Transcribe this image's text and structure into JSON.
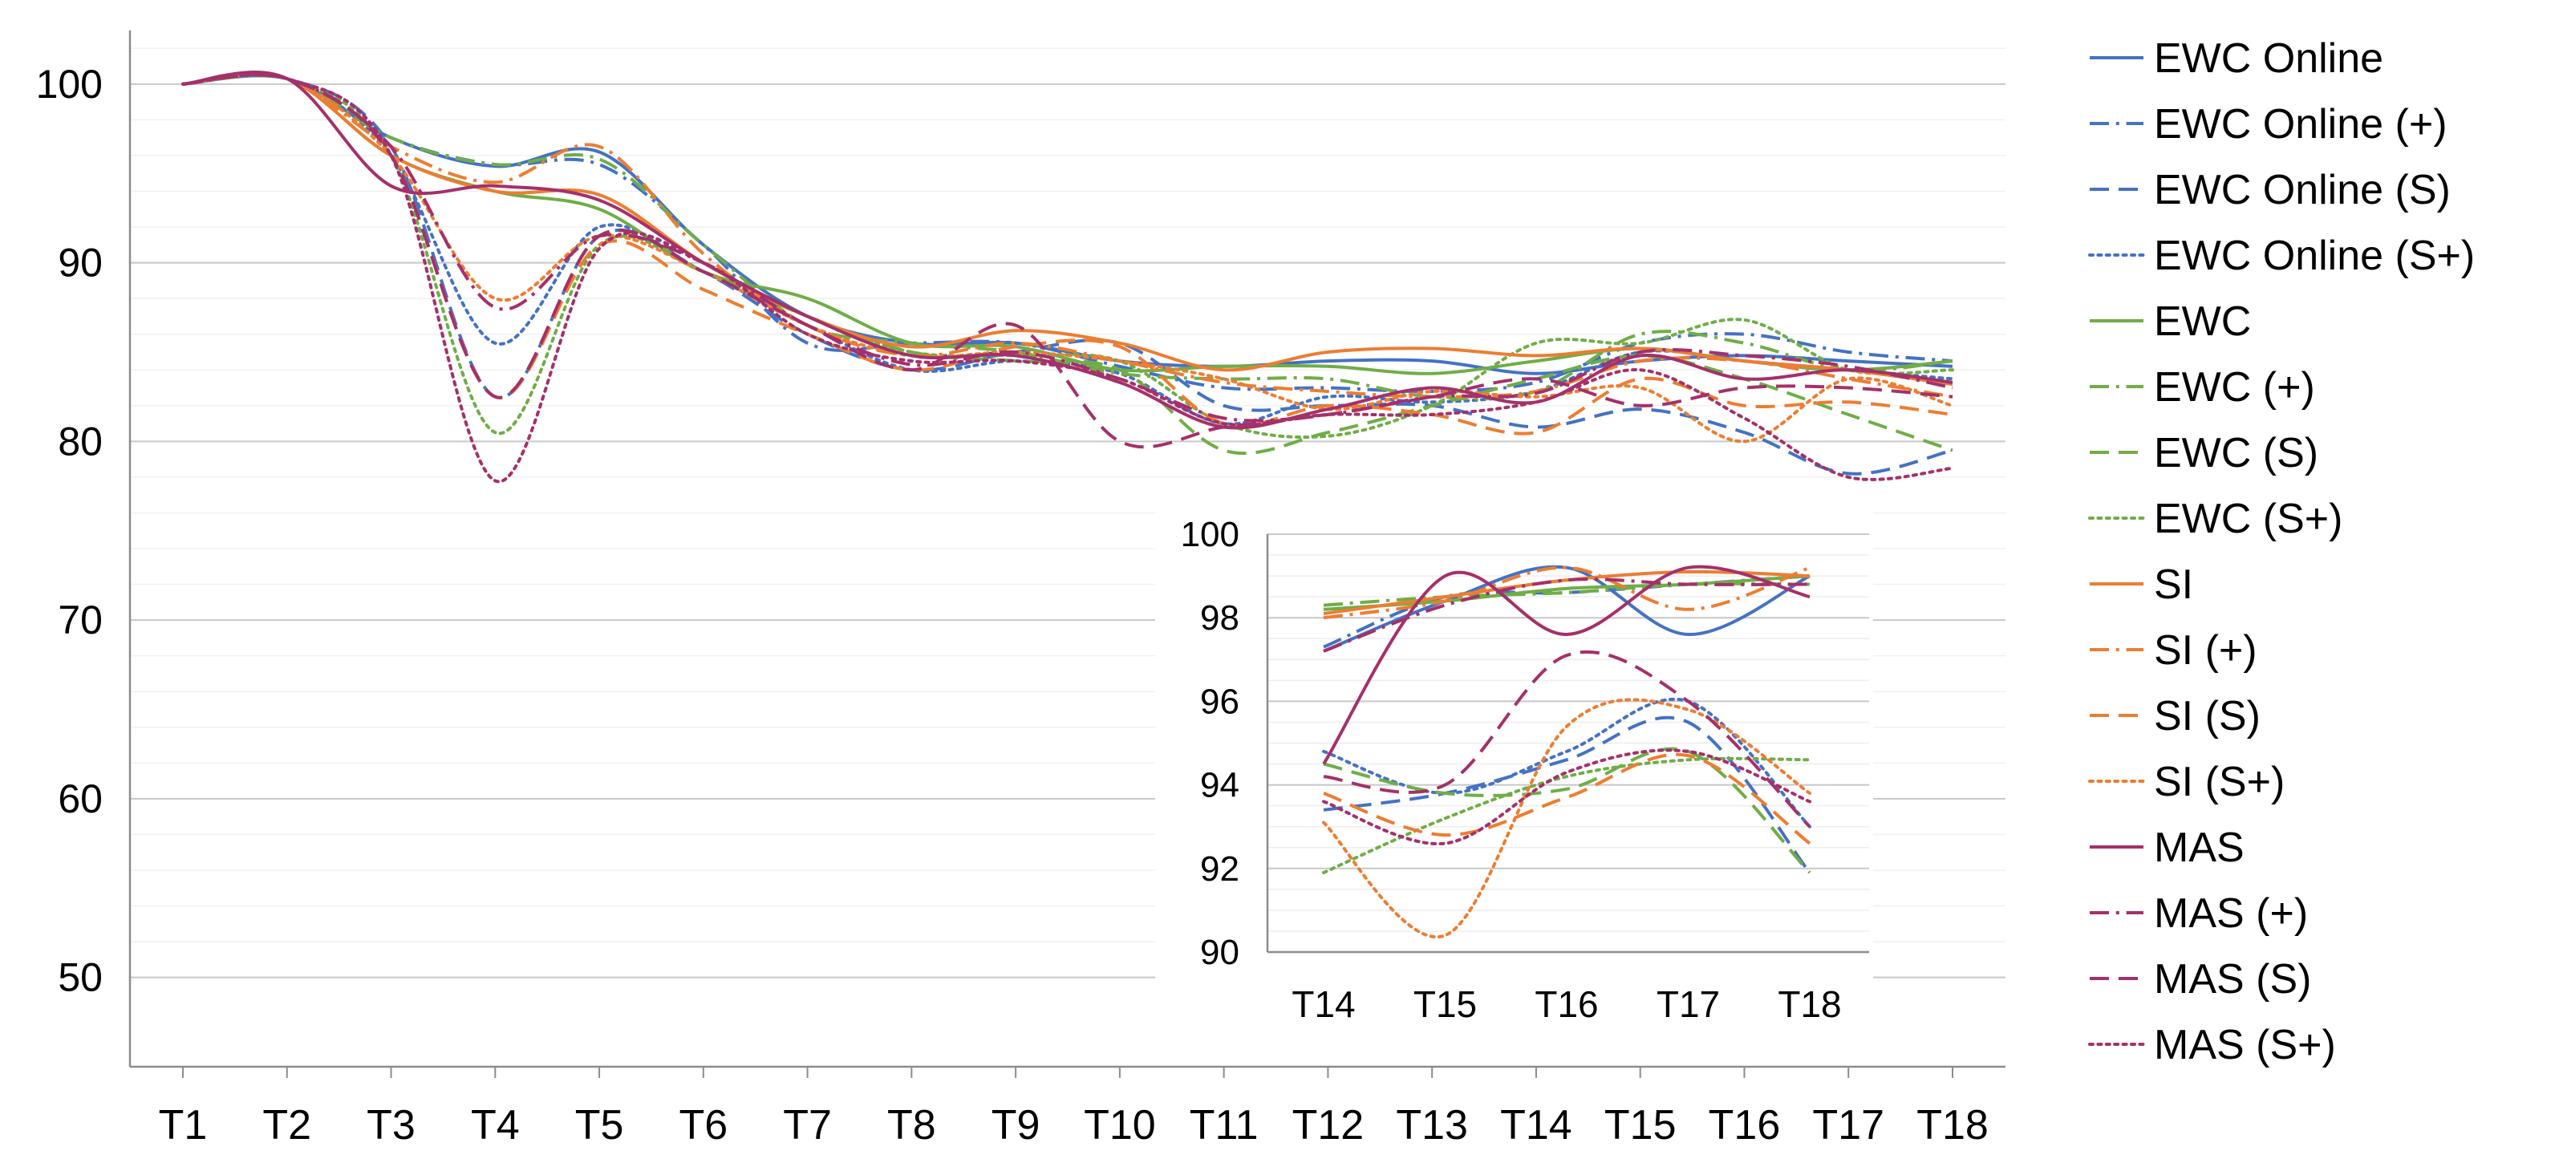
{
  "chart_data": [
    {
      "type": "line",
      "title": "",
      "xlabel": "",
      "ylabel": "",
      "categories": [
        "T1",
        "T2",
        "T3",
        "T4",
        "T5",
        "T6",
        "T7",
        "T8",
        "T9",
        "T10",
        "T11",
        "T12",
        "T13",
        "T14",
        "T15",
        "T16",
        "T17",
        "T18"
      ],
      "yticks": [
        "100",
        "90",
        "80",
        "70",
        "60",
        "50"
      ],
      "ylim": [
        45,
        103
      ],
      "grid": true,
      "legend_position": "right",
      "series": [
        {
          "name": "EWC Online",
          "color": "#4472C4",
          "dash": "solid",
          "values": [
            100,
            100.3,
            97,
            95.4,
            96.2,
            91,
            87,
            85.5,
            85.5,
            84.5,
            84.2,
            84.5,
            84.5,
            83.8,
            84.5,
            84.8,
            84.5,
            84.2
          ]
        },
        {
          "name": "EWC Online (+)",
          "color": "#4472C4",
          "dash": "dashdot",
          "values": [
            100,
            100.3,
            97,
            95.5,
            95.5,
            91,
            85.5,
            85.5,
            85.5,
            84.2,
            83,
            83,
            82.8,
            83.3,
            85.5,
            86,
            85,
            84.5
          ]
        },
        {
          "name": "EWC Online (S)",
          "color": "#4472C4",
          "dash": "dash",
          "values": [
            100,
            100.3,
            96.5,
            82.5,
            91.5,
            89.5,
            86,
            84,
            85,
            85.5,
            82,
            82,
            82,
            80.8,
            81.8,
            80.5,
            78.2,
            79.5
          ]
        },
        {
          "name": "EWC Online (S+)",
          "color": "#4472C4",
          "dash": "dot",
          "values": [
            100,
            100.3,
            96,
            85.5,
            92,
            89.5,
            86.5,
            84,
            84.5,
            83.8,
            81,
            82.5,
            82.2,
            82.8,
            85,
            84.5,
            84,
            83.5
          ]
        },
        {
          "name": "EWC",
          "color": "#70AD47",
          "dash": "solid",
          "values": [
            100,
            100.3,
            96,
            94,
            93,
            89.5,
            88,
            85.5,
            85.3,
            84,
            84.2,
            84.2,
            83.8,
            84.5,
            85.2,
            84.5,
            84,
            84.5
          ]
        },
        {
          "name": "EWC (+)",
          "color": "#70AD47",
          "dash": "dashdot",
          "values": [
            100,
            100.3,
            97,
            95.5,
            95.8,
            91,
            86.5,
            85.5,
            85,
            83.8,
            83.5,
            83.5,
            82.5,
            82.8,
            86,
            85.5,
            84,
            84.5
          ]
        },
        {
          "name": "EWC (S)",
          "color": "#70AD47",
          "dash": "dash",
          "values": [
            100,
            100.3,
            96,
            82.5,
            91.5,
            89.5,
            87,
            85,
            84.5,
            84,
            79.5,
            80.5,
            82,
            83.5,
            84.8,
            83.5,
            81.5,
            79.5
          ]
        },
        {
          "name": "EWC (S+)",
          "color": "#70AD47",
          "dash": "dot",
          "values": [
            100,
            100.3,
            96,
            80.5,
            91,
            89.5,
            87,
            85,
            84.8,
            84.5,
            81,
            80.3,
            82,
            85.5,
            85.5,
            86.8,
            84,
            84
          ]
        },
        {
          "name": "SI",
          "color": "#ED7D31",
          "dash": "solid",
          "values": [
            100,
            100.3,
            96,
            94,
            93.8,
            90,
            87,
            85.3,
            86.2,
            85.5,
            84,
            85,
            85.2,
            84.8,
            85.2,
            84.5,
            84,
            83.2
          ]
        },
        {
          "name": "SI (+)",
          "color": "#ED7D31",
          "dash": "dashdot",
          "values": [
            100,
            100.3,
            96.5,
            94.5,
            96.5,
            90.5,
            86.5,
            84.8,
            85.5,
            84.5,
            83.3,
            82.8,
            82.5,
            82.8,
            84.5,
            84.5,
            83.5,
            82.5
          ]
        },
        {
          "name": "SI (S)",
          "color": "#ED7D31",
          "dash": "dash",
          "values": [
            100,
            100.3,
            96,
            82.5,
            91,
            88.5,
            86,
            84,
            85.3,
            85.3,
            81,
            82,
            81.5,
            80.5,
            83.5,
            82,
            82.2,
            81.5
          ]
        },
        {
          "name": "SI (S+)",
          "color": "#ED7D31",
          "dash": "dot",
          "values": [
            100,
            100.3,
            96,
            88,
            91.5,
            89.5,
            86.5,
            84.8,
            85,
            84.5,
            83.5,
            81.8,
            82.8,
            82.5,
            83,
            80,
            83.5,
            82
          ]
        },
        {
          "name": "MAS",
          "color": "#A5306A",
          "dash": "solid",
          "values": [
            100,
            100.3,
            94.3,
            94.3,
            93.5,
            90,
            87,
            84.8,
            84.8,
            83.3,
            80.8,
            81.8,
            83,
            82.2,
            84.8,
            83.5,
            84,
            83.3
          ]
        },
        {
          "name": "MAS (+)",
          "color": "#A5306A",
          "dash": "dashdot",
          "values": [
            100,
            100.3,
            96.5,
            87.5,
            91.5,
            90,
            86.5,
            84.3,
            85,
            83.5,
            81.3,
            81.5,
            82.5,
            82.7,
            85,
            84.8,
            84.2,
            83
          ]
        },
        {
          "name": "MAS (S)",
          "color": "#A5306A",
          "dash": "dash",
          "values": [
            100,
            100.3,
            96,
            82.5,
            91.5,
            89.5,
            86.5,
            84,
            86.5,
            80,
            80.8,
            81.5,
            82.5,
            83.5,
            82,
            83,
            83,
            82.5
          ]
        },
        {
          "name": "MAS (S+)",
          "color": "#A5306A",
          "dash": "dot",
          "values": [
            100,
            100.3,
            96,
            77.8,
            90.8,
            90,
            86,
            84.5,
            84.5,
            83.5,
            81,
            81.5,
            81.5,
            82.2,
            84,
            81.3,
            78,
            78.5
          ]
        }
      ]
    },
    {
      "type": "line",
      "title": "",
      "xlabel": "",
      "ylabel": "",
      "categories": [
        "T14",
        "T15",
        "T16",
        "T17",
        "T18"
      ],
      "yticks": [
        "100",
        "98",
        "96",
        "94",
        "92",
        "90"
      ],
      "ylim": [
        90,
        100
      ],
      "grid": true,
      "legend_position": "none",
      "series": [
        {
          "name": "EWC Online",
          "values": [
            97.2,
            98.4,
            99.2,
            97.6,
            99.0
          ]
        },
        {
          "name": "EWC Online (+)",
          "values": [
            97.3,
            98.5,
            98.6,
            98.8,
            99.0
          ]
        },
        {
          "name": "EWC Online (S)",
          "values": [
            93.4,
            93.8,
            94.6,
            95.5,
            91.9
          ]
        },
        {
          "name": "EWC Online (S+)",
          "values": [
            94.8,
            93.8,
            94.8,
            96.0,
            93.0
          ]
        },
        {
          "name": "EWC",
          "values": [
            98.2,
            98.4,
            98.7,
            98.8,
            99.0
          ]
        },
        {
          "name": "EWC (+)",
          "values": [
            98.3,
            98.5,
            98.6,
            98.8,
            98.8
          ]
        },
        {
          "name": "EWC (S)",
          "values": [
            94.5,
            93.8,
            93.9,
            94.8,
            91.9
          ]
        },
        {
          "name": "EWC (S+)",
          "values": [
            91.9,
            93.2,
            94.2,
            94.6,
            94.6
          ]
        },
        {
          "name": "SI",
          "values": [
            98.1,
            98.5,
            98.9,
            99.1,
            99.0
          ]
        },
        {
          "name": "SI (+)",
          "values": [
            98.0,
            98.4,
            99.2,
            98.2,
            99.2
          ]
        },
        {
          "name": "SI (S)",
          "values": [
            93.8,
            92.8,
            93.7,
            94.7,
            92.6
          ]
        },
        {
          "name": "SI (S+)",
          "values": [
            93.1,
            90.4,
            95.4,
            95.8,
            93.8
          ]
        },
        {
          "name": "MAS",
          "values": [
            94.5,
            99.0,
            97.6,
            99.2,
            98.5
          ]
        },
        {
          "name": "MAS (+)",
          "values": [
            97.2,
            98.3,
            98.9,
            98.8,
            98.8
          ]
        },
        {
          "name": "MAS (S)",
          "values": [
            94.2,
            94.0,
            97.1,
            96.0,
            93.0
          ]
        },
        {
          "name": "MAS (S+)",
          "values": [
            93.6,
            92.6,
            94.3,
            94.8,
            93.6
          ]
        }
      ]
    }
  ]
}
